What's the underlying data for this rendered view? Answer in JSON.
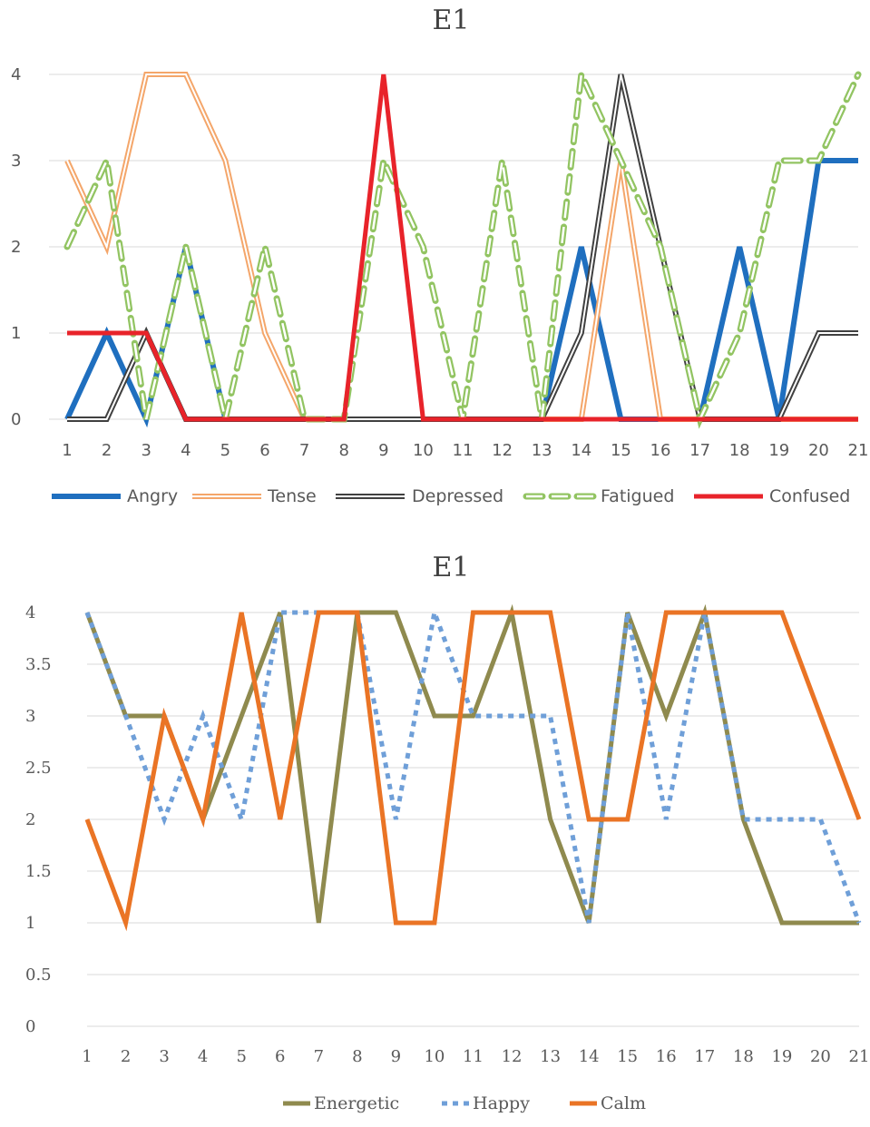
{
  "chart_data": [
    {
      "type": "line",
      "title": "E1",
      "x": [
        1,
        2,
        3,
        4,
        5,
        6,
        7,
        8,
        9,
        10,
        11,
        12,
        13,
        14,
        15,
        16,
        17,
        18,
        19,
        20,
        21
      ],
      "ylim": [
        0,
        4
      ],
      "yticks": [
        0,
        1,
        2,
        3,
        4
      ],
      "grid": true,
      "legend": "bottom",
      "series": [
        {
          "name": "Angry",
          "color": "#1f6fbf",
          "style": "solid-thick",
          "values": [
            0,
            1,
            0,
            2,
            0,
            0,
            0,
            0,
            0,
            0,
            0,
            0,
            0,
            2,
            0,
            0,
            0,
            2,
            0,
            3,
            3
          ]
        },
        {
          "name": "Tense",
          "color": "#f4a66a",
          "style": "double",
          "values": [
            3,
            2,
            4,
            4,
            3,
            1,
            0,
            0,
            0,
            0,
            0,
            0,
            0,
            0,
            3,
            0,
            0,
            0,
            0,
            0,
            0
          ]
        },
        {
          "name": "Depressed",
          "color": "#404040",
          "style": "double",
          "values": [
            0,
            0,
            1,
            0,
            0,
            0,
            0,
            0,
            0,
            0,
            0,
            0,
            0,
            1,
            4,
            2,
            0,
            0,
            0,
            1,
            1
          ]
        },
        {
          "name": "Fatigued",
          "color": "#92c462",
          "style": "dashed-double",
          "values": [
            2,
            3,
            0,
            2,
            0,
            2,
            0,
            0,
            3,
            2,
            0,
            3,
            0,
            4,
            3,
            2,
            0,
            1,
            3,
            3,
            4
          ]
        },
        {
          "name": "Confused",
          "color": "#e8232a",
          "style": "solid",
          "values": [
            1,
            1,
            1,
            0,
            0,
            0,
            0,
            0,
            4,
            0,
            0,
            0,
            0,
            0,
            0,
            0,
            0,
            0,
            0,
            0,
            0
          ]
        }
      ]
    },
    {
      "type": "line",
      "title": "E1",
      "x": [
        1,
        2,
        3,
        4,
        5,
        6,
        7,
        8,
        9,
        10,
        11,
        12,
        13,
        14,
        15,
        16,
        17,
        18,
        19,
        20,
        21
      ],
      "ylim": [
        0,
        4
      ],
      "yticks": [
        "0",
        "0.5",
        "1",
        "1.5",
        "2",
        "2.5",
        "3",
        "3.5",
        "4"
      ],
      "grid": true,
      "legend": "bottom",
      "series": [
        {
          "name": "Energetic",
          "color": "#8f8a4e",
          "style": "solid",
          "values": [
            4,
            3,
            3,
            2,
            3,
            4,
            1,
            4,
            4,
            3,
            3,
            4,
            2,
            1,
            4,
            3,
            4,
            2,
            1,
            1,
            1
          ]
        },
        {
          "name": "Happy",
          "color": "#6f9fd8",
          "style": "dotted",
          "values": [
            4,
            3,
            2,
            3,
            2,
            4,
            4,
            4,
            2,
            4,
            3,
            3,
            3,
            1,
            4,
            2,
            4,
            2,
            2,
            2,
            1
          ]
        },
        {
          "name": "Calm",
          "color": "#ea7425",
          "style": "solid",
          "values": [
            2,
            1,
            3,
            2,
            4,
            2,
            4,
            4,
            1,
            1,
            4,
            4,
            4,
            2,
            2,
            4,
            4,
            4,
            4,
            3,
            2
          ]
        }
      ]
    }
  ]
}
